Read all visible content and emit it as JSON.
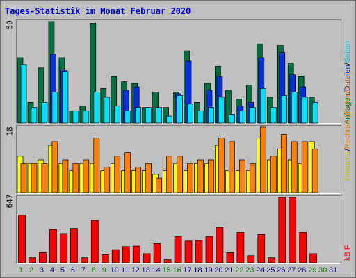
{
  "title": "Tages-Statistik im Monat Februar 2020",
  "colors": {
    "anfragen": "#007040",
    "dateien": "#0030e0",
    "seiten": "#00e0ff",
    "besuche": "#ffff00",
    "rechner": "#ff8000",
    "kbf": "#ff0000",
    "weekend_label": "#007000",
    "weekday_label": "#000080"
  },
  "panels": {
    "top": {
      "ymax": "59",
      "legend": [
        {
          "text": "Anfragen",
          "color": "#007040"
        },
        {
          "text": "Dateien",
          "color": "#0030e0"
        },
        {
          "text": "Seiten",
          "color": "#00e0ff"
        }
      ]
    },
    "middle": {
      "ymax": "18",
      "legend": [
        {
          "text": "Besuche",
          "color": "#e0e000"
        },
        {
          "text": "Rechner (IP-Adressen)",
          "color": "#ff8000"
        }
      ]
    },
    "bottom": {
      "ymax": "647",
      "legend": [
        {
          "text": "kB F",
          "color": "#ff0000"
        }
      ]
    }
  },
  "chart_data": [
    {
      "type": "bar",
      "categories": [
        "1",
        "2",
        "3",
        "4",
        "5",
        "6",
        "7",
        "8",
        "9",
        "10",
        "11",
        "12",
        "13",
        "14",
        "15",
        "16",
        "17",
        "18",
        "19",
        "20",
        "21",
        "22",
        "23",
        "24",
        "25",
        "26",
        "27",
        "28",
        "29",
        "30",
        "31"
      ],
      "ylim": [
        0,
        59
      ],
      "series": [
        {
          "name": "Anfragen",
          "values": [
            38,
            12,
            32,
            59,
            38,
            7,
            10,
            58,
            20,
            27,
            24,
            23,
            9,
            18,
            9,
            18,
            42,
            12,
            23,
            33,
            19,
            14,
            22,
            46,
            15,
            45,
            35,
            27,
            15,
            0,
            0
          ]
        },
        {
          "name": "Dateien",
          "values": [
            0,
            0,
            0,
            40,
            31,
            0,
            0,
            0,
            0,
            0,
            19,
            21,
            0,
            0,
            0,
            17,
            36,
            0,
            19,
            27,
            0,
            10,
            12,
            38,
            0,
            41,
            28,
            21,
            0,
            0,
            0
          ]
        },
        {
          "name": "Seiten",
          "values": [
            34,
            9,
            12,
            18,
            30,
            7,
            7,
            18,
            15,
            10,
            7,
            9,
            9,
            9,
            4,
            16,
            11,
            7,
            9,
            15,
            5,
            7,
            9,
            20,
            9,
            16,
            18,
            15,
            12,
            0,
            0
          ]
        }
      ]
    },
    {
      "type": "bar",
      "categories": [
        "1",
        "2",
        "3",
        "4",
        "5",
        "6",
        "7",
        "8",
        "9",
        "10",
        "11",
        "12",
        "13",
        "14",
        "15",
        "16",
        "17",
        "18",
        "19",
        "20",
        "21",
        "22",
        "23",
        "24",
        "25",
        "26",
        "27",
        "28",
        "29",
        "30",
        "31"
      ],
      "ylim": [
        0,
        18
      ],
      "series": [
        {
          "name": "Besuche",
          "values": [
            10,
            8,
            9,
            13,
            8,
            6,
            8,
            8,
            6,
            8,
            6,
            6,
            6,
            5,
            6,
            8,
            6,
            8,
            8,
            13,
            6,
            6,
            6,
            15,
            9,
            12,
            9,
            8,
            14,
            0,
            0
          ]
        },
        {
          "name": "Rechner (IP-Adressen)",
          "values": [
            8,
            8,
            8,
            14,
            9,
            8,
            9,
            15,
            7,
            10,
            11,
            7,
            8,
            4,
            10,
            10,
            8,
            9,
            9,
            15,
            14,
            9,
            8,
            18,
            10,
            16,
            14,
            14,
            12,
            0,
            0
          ]
        }
      ]
    },
    {
      "type": "bar",
      "categories": [
        "1",
        "2",
        "3",
        "4",
        "5",
        "6",
        "7",
        "8",
        "9",
        "10",
        "11",
        "12",
        "13",
        "14",
        "15",
        "16",
        "17",
        "18",
        "19",
        "20",
        "21",
        "22",
        "23",
        "24",
        "25",
        "26",
        "27",
        "28",
        "29",
        "30",
        "31"
      ],
      "ylim": [
        0,
        647
      ],
      "series": [
        {
          "name": "kB F",
          "values": [
            470,
            50,
            100,
            330,
            290,
            340,
            50,
            420,
            80,
            130,
            160,
            165,
            90,
            190,
            30,
            260,
            215,
            220,
            260,
            350,
            100,
            300,
            70,
            280,
            50,
            647,
            647,
            300,
            90,
            0,
            0
          ]
        }
      ]
    }
  ],
  "x_labels": [
    {
      "text": "1",
      "weekend": true
    },
    {
      "text": "2",
      "weekend": true
    },
    {
      "text": "3",
      "weekend": false
    },
    {
      "text": "4",
      "weekend": false
    },
    {
      "text": "5",
      "weekend": false
    },
    {
      "text": "6",
      "weekend": false
    },
    {
      "text": "7",
      "weekend": false
    },
    {
      "text": "8",
      "weekend": true
    },
    {
      "text": "9",
      "weekend": true
    },
    {
      "text": "10",
      "weekend": false
    },
    {
      "text": "11",
      "weekend": false
    },
    {
      "text": "12",
      "weekend": false
    },
    {
      "text": "13",
      "weekend": false
    },
    {
      "text": "14",
      "weekend": false
    },
    {
      "text": "15",
      "weekend": true
    },
    {
      "text": "16",
      "weekend": true
    },
    {
      "text": "17",
      "weekend": false
    },
    {
      "text": "18",
      "weekend": false
    },
    {
      "text": "19",
      "weekend": false
    },
    {
      "text": "20",
      "weekend": false
    },
    {
      "text": "21",
      "weekend": false
    },
    {
      "text": "22",
      "weekend": true
    },
    {
      "text": "23",
      "weekend": true
    },
    {
      "text": "24",
      "weekend": false
    },
    {
      "text": "25",
      "weekend": false
    },
    {
      "text": "26",
      "weekend": false
    },
    {
      "text": "27",
      "weekend": false
    },
    {
      "text": "28",
      "weekend": false
    },
    {
      "text": "29",
      "weekend": true
    },
    {
      "text": "30",
      "weekend": true
    },
    {
      "text": "31",
      "weekend": false
    }
  ]
}
